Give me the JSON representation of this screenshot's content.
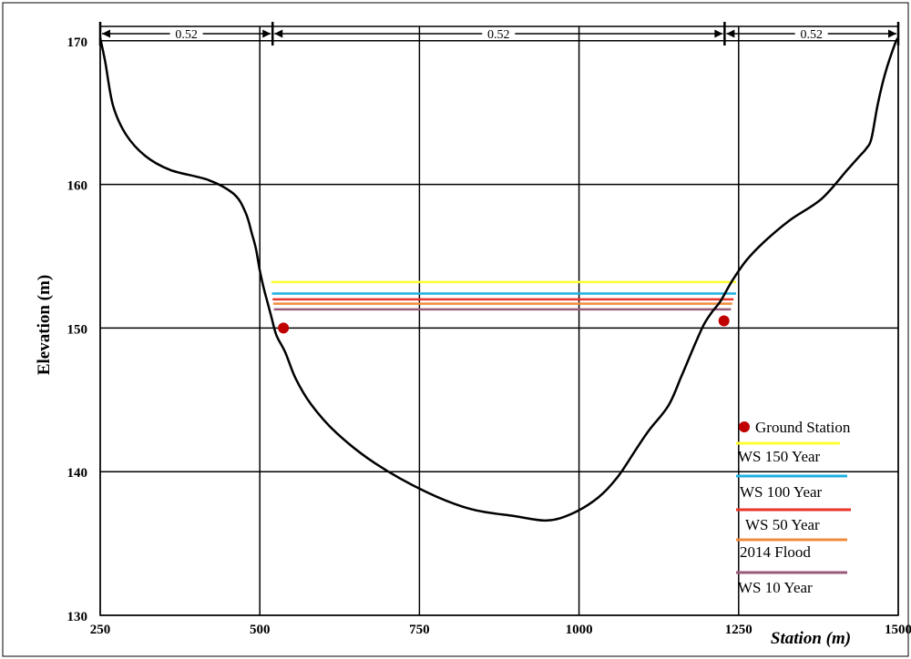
{
  "chart_data": {
    "type": "line",
    "title": "",
    "xlabel": "Station (m)",
    "ylabel": "Elevation (m)",
    "xlim": [
      250,
      1500
    ],
    "ylim": [
      130,
      171
    ],
    "x_ticks": [
      "250",
      "500",
      "750",
      "1000",
      "1250",
      "1500"
    ],
    "x_tick_values": [
      250,
      500,
      750,
      1000,
      1250,
      1500
    ],
    "y_ticks": [
      "130",
      "140",
      "150",
      "160",
      "170"
    ],
    "y_tick_values": [
      130,
      140,
      150,
      160,
      170
    ],
    "grid": true,
    "legend_position": "bottom-right",
    "channel_dimensions": [
      {
        "label": "0.52",
        "from": 250,
        "to": 520
      },
      {
        "label": "0.52",
        "from": 520,
        "to": 1228
      },
      {
        "label": "0.52",
        "from": 1228,
        "to": 1500
      }
    ],
    "ground_profile": {
      "x": [
        250,
        258,
        270,
        290,
        320,
        360,
        420,
        460,
        478,
        488,
        494,
        500,
        506,
        512,
        518,
        526,
        540,
        556,
        580,
        620,
        680,
        760,
        830,
        900,
        950,
        990,
        1030,
        1060,
        1090,
        1110,
        1140,
        1160,
        1178,
        1195,
        1208,
        1222,
        1240,
        1262,
        1290,
        1330,
        1380,
        1420,
        1440,
        1450,
        1458,
        1468,
        1480,
        1495,
        1500
      ],
      "y": [
        170.2,
        168.5,
        165.5,
        163.5,
        162,
        161,
        160.3,
        159.3,
        158,
        156.5,
        155.5,
        154,
        152.8,
        151.8,
        150.8,
        149.5,
        148.3,
        146.5,
        144.7,
        142.7,
        140.6,
        138.6,
        137.4,
        136.9,
        136.6,
        137.1,
        138.2,
        139.6,
        141.6,
        142.9,
        144.6,
        146.6,
        148.5,
        150.2,
        151.1,
        151.9,
        153.3,
        154.7,
        156,
        157.5,
        159,
        161,
        162,
        162.5,
        163.2,
        165.6,
        167.8,
        169.8,
        170.2
      ]
    },
    "ground_stations": {
      "name": "Ground Station",
      "color": "#c00000",
      "points": [
        {
          "x": 537,
          "y": 150.0
        },
        {
          "x": 1227,
          "y": 150.5
        }
      ]
    },
    "series": [
      {
        "name": "WS 150 Year",
        "color": "#ffff33",
        "x": [
          518,
          1246
        ],
        "y": [
          153.2,
          153.2
        ]
      },
      {
        "name": "WS 100 Year",
        "color": "#1fb0e0",
        "x": [
          519,
          1246
        ],
        "y": [
          152.4,
          152.4
        ]
      },
      {
        "name": "WS 50 Year",
        "color": "#e8352a",
        "x": [
          520,
          1242
        ],
        "y": [
          152.0,
          152.0
        ]
      },
      {
        "name": "2014 Flood",
        "color": "#f08c3c",
        "x": [
          521,
          1240
        ],
        "y": [
          151.7,
          151.7
        ]
      },
      {
        "name": "WS 10 Year",
        "color": "#9a5a7a",
        "x": [
          522,
          1238
        ],
        "y": [
          151.3,
          151.3
        ]
      }
    ]
  }
}
